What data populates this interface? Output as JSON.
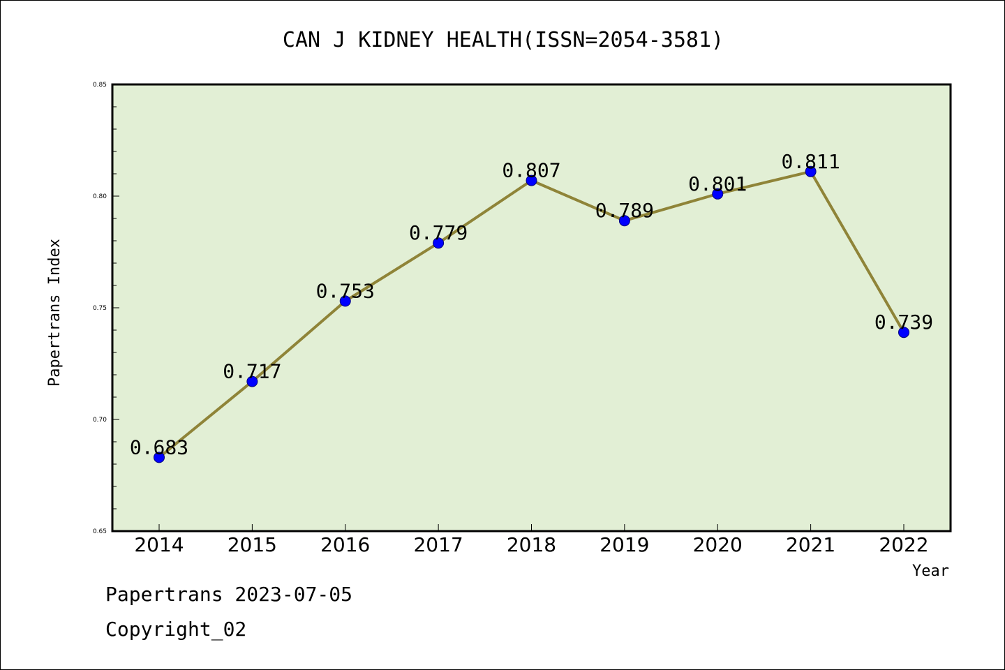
{
  "chart_data": {
    "type": "line",
    "title": "CAN J KIDNEY HEALTH(ISSN=2054-3581)",
    "xlabel": "Year",
    "ylabel": "Papertrans Index",
    "categories": [
      "2014",
      "2015",
      "2016",
      "2017",
      "2018",
      "2019",
      "2020",
      "2021",
      "2022"
    ],
    "values": [
      0.683,
      0.717,
      0.753,
      0.779,
      0.807,
      0.789,
      0.801,
      0.811,
      0.739
    ],
    "data_labels": [
      "0.683",
      "0.717",
      "0.753",
      "0.779",
      "0.807",
      "0.789",
      "0.801",
      "0.811",
      "0.739"
    ],
    "ylim": [
      0.65,
      0.85
    ],
    "yticks": [
      "0.65",
      "0.70",
      "0.75",
      "0.80",
      "0.85"
    ],
    "grid": false,
    "colors": {
      "plot_background": "#e2efd5",
      "line": "#8f8438",
      "marker": "#0000ff"
    }
  },
  "footer": {
    "date_text": "Papertrans 2023-07-05",
    "copyright_text": "Copyright_02"
  }
}
